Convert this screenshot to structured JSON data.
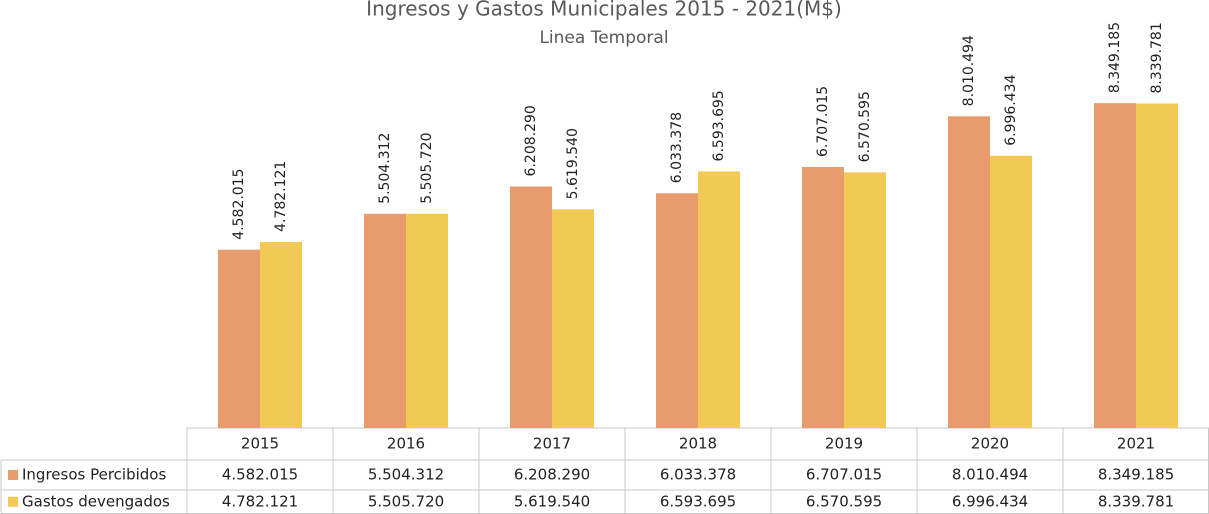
{
  "chart_data": {
    "type": "bar",
    "title": "Ingresos y Gastos Municipales 2015 - 2021(M$)",
    "subtitle": "Linea Temporal",
    "categories": [
      "2015",
      "2016",
      "2017",
      "2018",
      "2019",
      "2020",
      "2021"
    ],
    "series": [
      {
        "name": "Ingresos Percibidos",
        "color": "#e89b6c",
        "values": [
          4582015,
          5504312,
          6208290,
          6033378,
          6707015,
          8010494,
          8349185
        ],
        "value_labels": [
          "4.582.015",
          "5.504.312",
          "6.208.290",
          "6.033.378",
          "6.707.015",
          "8.010.494",
          "8.349.185"
        ]
      },
      {
        "name": "Gastos devengados",
        "color": "#f2c955",
        "values": [
          4782121,
          5505720,
          5619540,
          6593695,
          6570595,
          6996434,
          8339781
        ],
        "value_labels": [
          "4.782.121",
          "5.505.720",
          "5.619.540",
          "6.593.695",
          "6.570.595",
          "6.996.434",
          "8.339.781"
        ]
      }
    ],
    "ylim": [
      0,
      11000000
    ]
  }
}
